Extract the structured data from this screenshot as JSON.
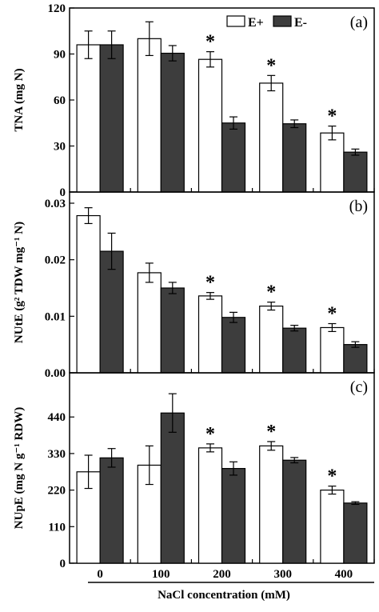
{
  "figure": {
    "xlabel": "NaCl concentration (mM)",
    "categories": [
      "0",
      "100",
      "200",
      "300",
      "400"
    ]
  },
  "legend": [
    {
      "label": "E+",
      "color": "#ffffff"
    },
    {
      "label": "E-",
      "color": "#3d3d3d"
    }
  ],
  "colors": {
    "e_plus": "#ffffff",
    "e_minus": "#3d3d3d",
    "stroke": "#000000"
  },
  "chart_data": [
    {
      "type": "bar",
      "panel_label": "(a)",
      "ylabel": "TNA (mg N)",
      "categories": [
        "0",
        "100",
        "200",
        "300",
        "400"
      ],
      "ylim": [
        0,
        120
      ],
      "yticks": [
        "0",
        "30",
        "60",
        "90",
        "120"
      ],
      "series": [
        {
          "name": "E+",
          "values": [
            96,
            100,
            86.5,
            71,
            38.5
          ],
          "errors": [
            9,
            11,
            5,
            5,
            4.5
          ]
        },
        {
          "name": "E-",
          "values": [
            96,
            90.5,
            45,
            44.5,
            26
          ],
          "errors": [
            9,
            5,
            4,
            2.5,
            2
          ]
        }
      ],
      "significance": [
        "",
        "",
        "*",
        "*",
        "*"
      ]
    },
    {
      "type": "bar",
      "panel_label": "(b)",
      "ylabel": "NUtE (g² TDW mg⁻¹ N)",
      "categories": [
        "0",
        "100",
        "200",
        "300",
        "400"
      ],
      "ylim": [
        0,
        0.03
      ],
      "yticks": [
        "0.00",
        "0.01",
        "0.02",
        "0.03"
      ],
      "series": [
        {
          "name": "E+",
          "values": [
            0.0278,
            0.0177,
            0.0136,
            0.0118,
            0.008
          ],
          "errors": [
            0.0014,
            0.0017,
            0.0006,
            0.0007,
            0.0007
          ]
        },
        {
          "name": "E-",
          "values": [
            0.0215,
            0.015,
            0.0098,
            0.0079,
            0.005
          ],
          "errors": [
            0.0032,
            0.001,
            0.0009,
            0.0005,
            0.0005
          ]
        }
      ],
      "significance": [
        "",
        "",
        "*",
        "*",
        "*"
      ]
    },
    {
      "type": "bar",
      "panel_label": "(c)",
      "ylabel": "NUpE (mg N g⁻¹ RDW)",
      "categories": [
        "0",
        "100",
        "200",
        "300",
        "400"
      ],
      "ylim": [
        0,
        520
      ],
      "yticks": [
        "0",
        "110",
        "220",
        "330",
        "440"
      ],
      "series": [
        {
          "name": "E+",
          "values": [
            275,
            295,
            347,
            353,
            220
          ],
          "errors": [
            50,
            58,
            12,
            13,
            12
          ]
        },
        {
          "name": "E-",
          "values": [
            317,
            452,
            285,
            310,
            181
          ],
          "errors": [
            28,
            58,
            20,
            8,
            4
          ]
        }
      ],
      "significance": [
        "",
        "",
        "*",
        "*",
        "*"
      ]
    }
  ]
}
